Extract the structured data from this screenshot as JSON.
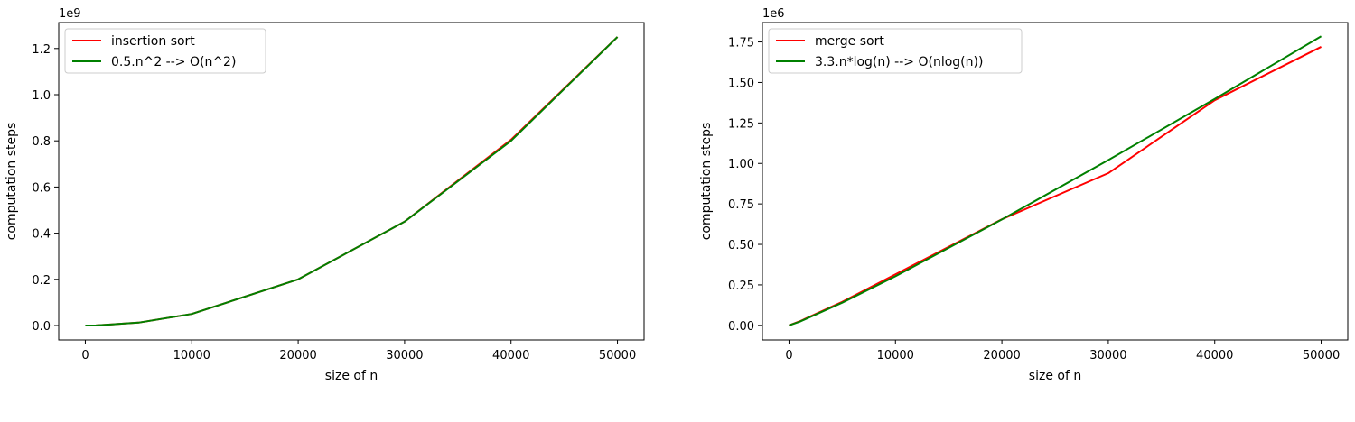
{
  "chart_data": [
    {
      "type": "line",
      "title": "",
      "xlabel": "size of n",
      "ylabel": "computation steps",
      "y_offset_label": "1e9",
      "y_scale": 1000000000,
      "xlim": [
        -2500,
        52500
      ],
      "ylim": [
        -0.0625,
        1.3125
      ],
      "x_ticks": [
        0,
        10000,
        20000,
        30000,
        40000,
        50000
      ],
      "x_tick_labels": [
        "0",
        "10000",
        "20000",
        "30000",
        "40000",
        "50000"
      ],
      "y_ticks": [
        0,
        0.2,
        0.4,
        0.6,
        0.8,
        1.0,
        1.2
      ],
      "y_tick_labels": [
        "0.0",
        "0.2",
        "0.4",
        "0.6",
        "0.8",
        "1.0",
        "1.2"
      ],
      "grid": false,
      "legend_position": "top-left",
      "series": [
        {
          "name": "insertion sort",
          "color": "#ff0000",
          "x": [
            0,
            1000,
            5000,
            10000,
            20000,
            30000,
            40000,
            50000
          ],
          "y": [
            0,
            0.0005,
            0.0125,
            0.05,
            0.2,
            0.45,
            0.805,
            1.25
          ]
        },
        {
          "name": "0.5.n^2 --> O(n^2)",
          "color": "#008000",
          "x": [
            0,
            1000,
            5000,
            10000,
            20000,
            30000,
            40000,
            50000
          ],
          "y": [
            0,
            0.0005,
            0.0125,
            0.05,
            0.2,
            0.45,
            0.8,
            1.25
          ]
        }
      ]
    },
    {
      "type": "line",
      "title": "",
      "xlabel": "size of n",
      "ylabel": "computation steps",
      "y_offset_label": "1e6",
      "y_scale": 1000000,
      "xlim": [
        -2500,
        52500
      ],
      "ylim": [
        -0.09,
        1.87
      ],
      "x_ticks": [
        0,
        10000,
        20000,
        30000,
        40000,
        50000
      ],
      "x_tick_labels": [
        "0",
        "10000",
        "20000",
        "30000",
        "40000",
        "50000"
      ],
      "y_ticks": [
        0,
        0.25,
        0.5,
        0.75,
        1.0,
        1.25,
        1.5,
        1.75
      ],
      "y_tick_labels": [
        "0.00",
        "0.25",
        "0.50",
        "0.75",
        "1.00",
        "1.25",
        "1.50",
        "1.75"
      ],
      "grid": false,
      "legend_position": "top-left",
      "series": [
        {
          "name": "merge sort",
          "color": "#ff0000",
          "x": [
            0,
            1000,
            5000,
            10000,
            20000,
            30000,
            40000,
            50000
          ],
          "y": [
            0,
            0.025,
            0.145,
            0.315,
            0.655,
            0.94,
            1.39,
            1.72
          ]
        },
        {
          "name": "3.3.n*log(n) --> O(nlog(n))",
          "color": "#008000",
          "x": [
            0,
            1000,
            5000,
            10000,
            20000,
            30000,
            40000,
            50000
          ],
          "y": [
            0,
            0.0226,
            0.1401,
            0.3034,
            0.6538,
            1.0207,
            1.3984,
            1.7853
          ]
        }
      ]
    }
  ]
}
